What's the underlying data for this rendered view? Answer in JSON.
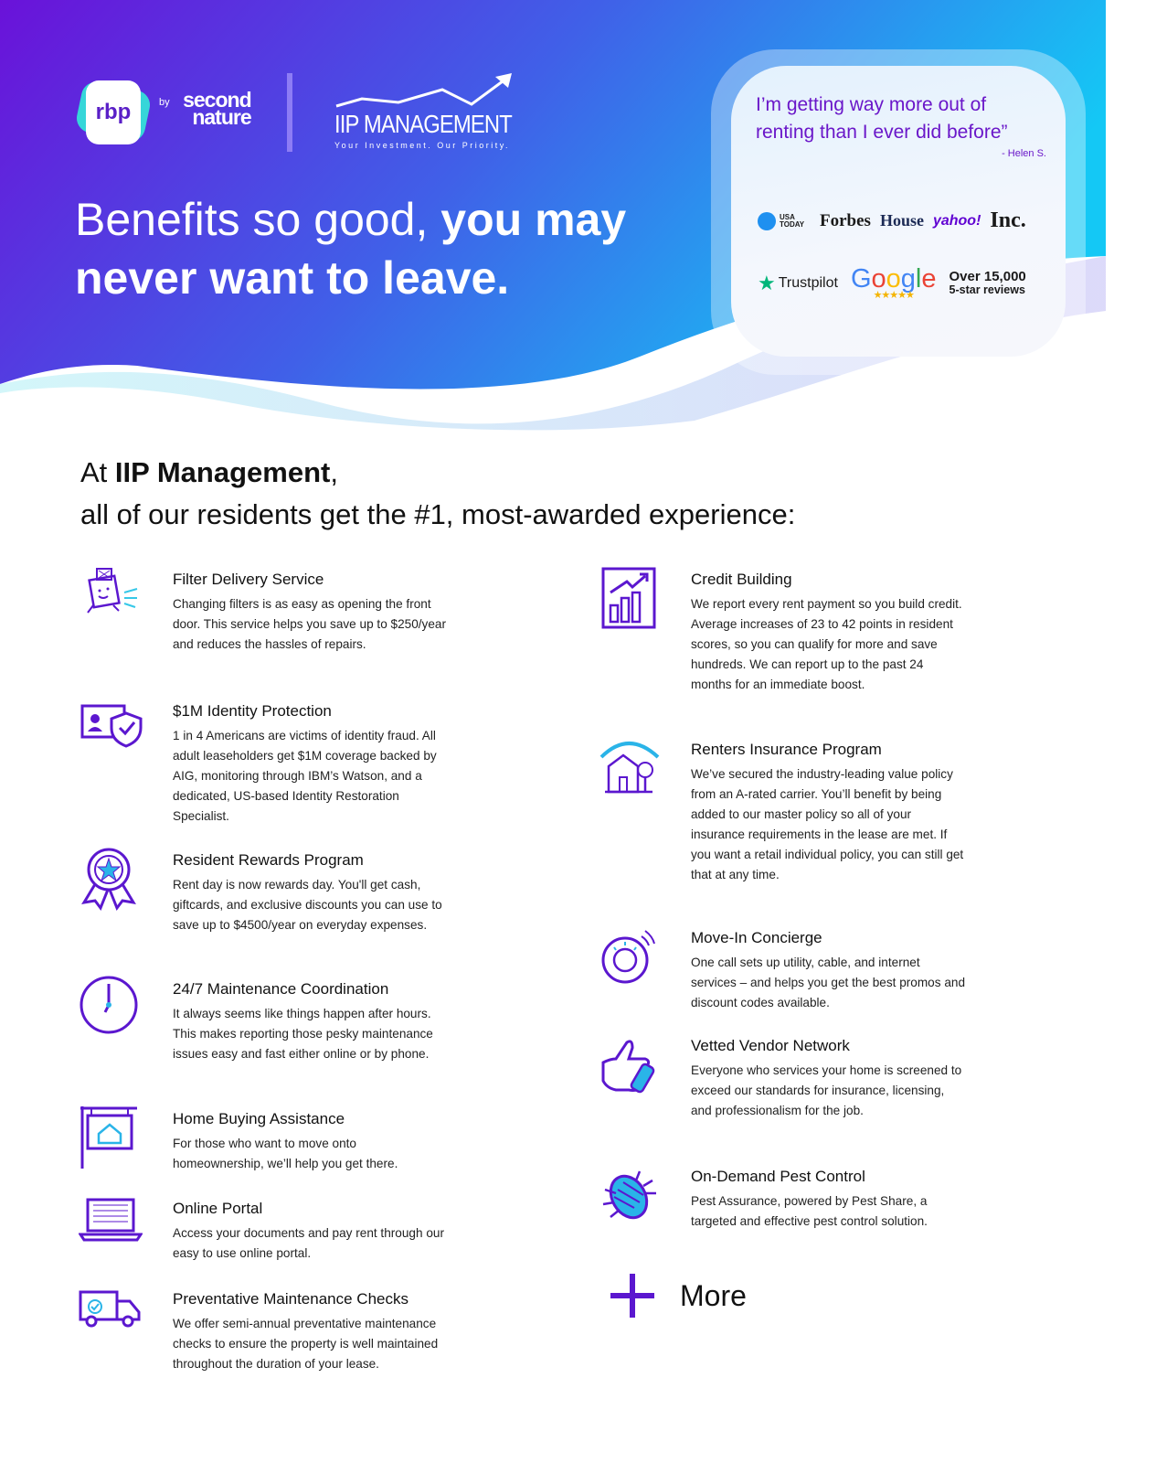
{
  "header": {
    "brand": {
      "rbp": "rbp",
      "by": "by",
      "second_nature": "second nature"
    },
    "partner": {
      "name": "IIP MANAGEMENT",
      "tagline": "Your Investment. Our Priority."
    },
    "headline_light": "Benefits so good, ",
    "headline_bold": "you may never want to leave."
  },
  "testimonial": {
    "quote": "I’m getting way more out of renting than I ever did before”",
    "author": "- Helen S.",
    "press": [
      "USA TODAY",
      "Forbes",
      "House",
      "yahoo!",
      "Inc."
    ],
    "trustpilot": "Trustpilot",
    "google": "Google",
    "reviews_count": "Over 15,000",
    "reviews_label": "5-star reviews"
  },
  "intro": {
    "prefix": "At ",
    "company": "IIP Management",
    "suffix": ",",
    "line2": "all of our residents get the #1, most-awarded experience:"
  },
  "benefits_left": [
    {
      "title": "Filter Delivery Service",
      "text": "Changing filters is as easy as opening the front door. This service helps you save up to $250/year and reduces the hassles of repairs.",
      "icon": "filter-box-icon"
    },
    {
      "title": "$1M Identity Protection",
      "text": "1 in 4 Americans are victims of identity fraud. All adult leaseholders get $1M coverage backed by AIG, monitoring through IBM’s Watson, and a dedicated, US-based Identity Restoration Specialist.",
      "icon": "id-shield-icon"
    },
    {
      "title": "Resident Rewards Program",
      "text": "Rent day is now rewards day. You'll get cash, giftcards, and exclusive discounts you can use to save up to $4500/year on everyday expenses.",
      "icon": "award-ribbon-icon"
    },
    {
      "title": "24/7 Maintenance Coordination",
      "text": "It always seems like things happen after hours. This makes reporting those pesky maintenance issues easy and fast either online or by phone.",
      "icon": "clock-icon"
    },
    {
      "title": "Home Buying Assistance",
      "text": "For those who want to move onto homeownership, we’ll help you get there.",
      "icon": "house-sign-icon"
    },
    {
      "title": "Online Portal",
      "text": "Access your documents and pay rent through our easy to use online portal.",
      "icon": "laptop-icon"
    },
    {
      "title": "Preventative Maintenance Checks",
      "text": "We offer semi-annual preventative maintenance checks to ensure the property is well maintained throughout the duration of your lease.",
      "icon": "truck-icon"
    }
  ],
  "benefits_right": [
    {
      "title": "Credit Building",
      "text": "We report every rent payment so you build credit. Average increases of 23 to 42 points in resident scores, so you can qualify for more and save hundreds. We can report up to the past 24 months for an immediate boost.",
      "icon": "bar-chart-icon"
    },
    {
      "title": "Renters Insurance Program",
      "text": "We’ve secured the industry-leading value policy from an A-rated carrier. You’ll benefit by being added to our master policy so all of your insurance requirements in the lease are met. If you want a retail individual policy, you can still get that at any time.",
      "icon": "house-umbrella-icon"
    },
    {
      "title": "Move-In Concierge",
      "text": "One call sets up utility, cable, and internet services – and helps you get the best promos and discount codes available.",
      "icon": "thermostat-icon"
    },
    {
      "title": "Vetted Vendor Network",
      "text": "Everyone who services your home is screened to exceed our standards for insurance, licensing, and professionalism for the job.",
      "icon": "thumbs-up-icon"
    },
    {
      "title": "On-Demand Pest Control",
      "text": "Pest Assurance, powered by Pest Share, a targeted and effective pest control solution.",
      "icon": "bug-icon"
    }
  ],
  "more_label": "More",
  "colors": {
    "accent": "#5b17cf",
    "quote": "#6a17c9",
    "gradient_start": "#6a12d9",
    "gradient_end": "#14c8f5"
  }
}
